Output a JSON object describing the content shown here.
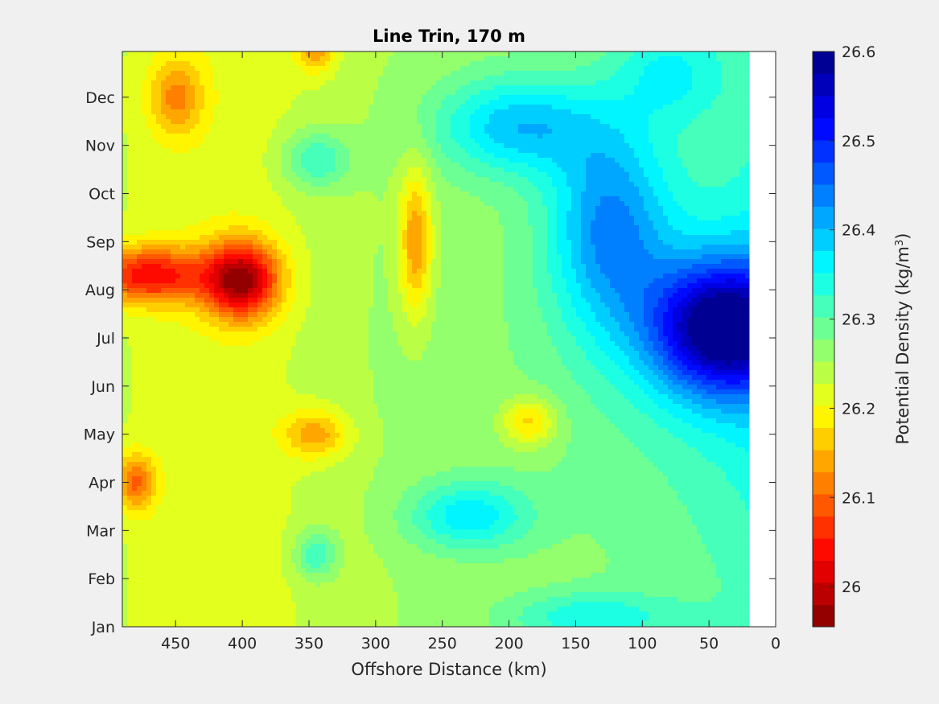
{
  "chart_data": {
    "type": "heatmap",
    "subtype": "filled-contour",
    "title": "Line Trin, 170 m",
    "xlabel": "Offshore Distance (km)",
    "ylabel": "",
    "x_direction": "reversed",
    "xlim": [
      0,
      490
    ],
    "xticks": [
      450,
      400,
      350,
      300,
      250,
      200,
      150,
      100,
      50,
      0
    ],
    "y_months": [
      "Jan",
      "Feb",
      "Mar",
      "Apr",
      "May",
      "Jun",
      "Jul",
      "Aug",
      "Sep",
      "Oct",
      "Nov",
      "Dec"
    ],
    "ylim_month_index": [
      0,
      11.95
    ],
    "data_x_range_km": [
      20,
      490
    ],
    "colorbar": {
      "label": "Potential Density (kg/m",
      "label_superscript": "3",
      "label_suffix": ")",
      "range": [
        25.955,
        26.6
      ],
      "ticks": [
        26.0,
        26.1,
        26.2,
        26.3,
        26.4,
        26.5,
        26.6
      ],
      "tick_labels": [
        "26",
        "26.1",
        "26.2",
        "26.3",
        "26.4",
        "26.5",
        "26.6"
      ],
      "levels": 26,
      "colormap": "jet-reversed"
    },
    "features": [
      {
        "kind": "high",
        "x": 40,
        "y": 6.2,
        "value": 26.55,
        "sx": 55,
        "sy": 1.4
      },
      {
        "kind": "high",
        "x": 125,
        "y": 8.3,
        "value": 26.4,
        "sx": 45,
        "sy": 2.2
      },
      {
        "kind": "high",
        "x": 195,
        "y": 10.4,
        "value": 26.38,
        "sx": 60,
        "sy": 1.0
      },
      {
        "kind": "high",
        "x": 230,
        "y": 2.3,
        "value": 26.36,
        "sx": 45,
        "sy": 0.7
      },
      {
        "kind": "high",
        "x": 345,
        "y": 1.5,
        "value": 26.34,
        "sx": 15,
        "sy": 0.5
      },
      {
        "kind": "high",
        "x": 345,
        "y": 9.7,
        "value": 26.34,
        "sx": 25,
        "sy": 0.6
      },
      {
        "kind": "high",
        "x": 140,
        "y": 0.2,
        "value": 26.33,
        "sx": 60,
        "sy": 0.5
      },
      {
        "kind": "high",
        "x": 80,
        "y": 11.5,
        "value": 26.32,
        "sx": 40,
        "sy": 1.0
      },
      {
        "kind": "low",
        "x": 400,
        "y": 7.2,
        "value": 26.0,
        "sx": 28,
        "sy": 0.8
      },
      {
        "kind": "low",
        "x": 470,
        "y": 7.3,
        "value": 26.06,
        "sx": 45,
        "sy": 0.6
      },
      {
        "kind": "low",
        "x": 270,
        "y": 8.0,
        "value": 26.12,
        "sx": 12,
        "sy": 1.5
      },
      {
        "kind": "low",
        "x": 450,
        "y": 11.0,
        "value": 26.15,
        "sx": 20,
        "sy": 0.8
      },
      {
        "kind": "low",
        "x": 480,
        "y": 3.0,
        "value": 26.12,
        "sx": 15,
        "sy": 0.6
      },
      {
        "kind": "low",
        "x": 345,
        "y": 12.0,
        "value": 26.15,
        "sx": 15,
        "sy": 0.5
      },
      {
        "kind": "low",
        "x": 345,
        "y": 4.0,
        "value": 26.15,
        "sx": 25,
        "sy": 0.5
      },
      {
        "kind": "low",
        "x": 185,
        "y": 4.25,
        "value": 26.15,
        "sx": 20,
        "sy": 0.5
      }
    ]
  }
}
